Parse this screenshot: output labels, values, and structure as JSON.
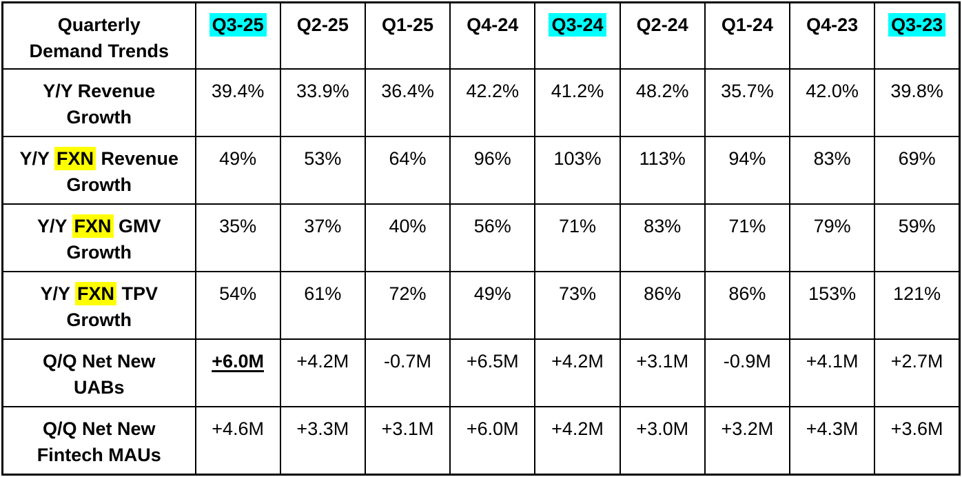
{
  "chart_data": {
    "type": "table",
    "title": "Quarterly Demand Trends",
    "categories": [
      "Q3-25",
      "Q2-25",
      "Q1-25",
      "Q4-24",
      "Q3-24",
      "Q2-24",
      "Q1-24",
      "Q4-23",
      "Q3-23"
    ],
    "series": [
      {
        "name": "Y/Y Revenue Growth",
        "values": [
          "39.4%",
          "33.9%",
          "36.4%",
          "42.2%",
          "41.2%",
          "48.2%",
          "35.7%",
          "42.0%",
          "39.8%"
        ]
      },
      {
        "name": "Y/Y FXN Revenue Growth",
        "values": [
          "49%",
          "53%",
          "64%",
          "96%",
          "103%",
          "113%",
          "94%",
          "83%",
          "69%"
        ]
      },
      {
        "name": "Y/Y FXN GMV Growth",
        "values": [
          "35%",
          "37%",
          "40%",
          "56%",
          "71%",
          "83%",
          "71%",
          "79%",
          "59%"
        ]
      },
      {
        "name": "Y/Y FXN TPV Growth",
        "values": [
          "54%",
          "61%",
          "72%",
          "49%",
          "73%",
          "86%",
          "86%",
          "153%",
          "121%"
        ]
      },
      {
        "name": "Q/Q Net New UABs",
        "values": [
          "+6.0M",
          "+4.2M",
          "-0.7M",
          "+6.5M",
          "+4.2M",
          "+3.1M",
          "-0.9M",
          "+4.1M",
          "+2.7M"
        ]
      },
      {
        "name": "Q/Q Net New Fintech MAUs",
        "values": [
          "+4.6M",
          "+3.3M",
          "+3.1M",
          "+6.0M",
          "+4.2M",
          "+3.0M",
          "+3.2M",
          "+4.3M",
          "+3.6M"
        ]
      }
    ],
    "highlighted_columns": [
      "Q3-25",
      "Q3-24",
      "Q3-23"
    ],
    "highlighted_term": "FXN",
    "emphasized_cell": {
      "row": "Q/Q Net New UABs",
      "column": "Q3-25",
      "value": "+6.0M"
    }
  },
  "table": {
    "title": "Quarterly\nDemand Trends",
    "columns": [
      {
        "text": "Q3-25",
        "highlight": true
      },
      {
        "text": "Q2-25"
      },
      {
        "text": "Q1-25"
      },
      {
        "text": "Q4-24"
      },
      {
        "text": "Q3-24",
        "highlight": true
      },
      {
        "text": "Q2-24"
      },
      {
        "text": "Q1-24"
      },
      {
        "text": "Q4-23"
      },
      {
        "text": "Q3-23",
        "highlight": true
      }
    ],
    "rows": [
      {
        "label": [
          {
            "text": "Y/Y Revenue\nGrowth"
          }
        ],
        "cells": [
          {
            "text": "39.4%"
          },
          {
            "text": "33.9%"
          },
          {
            "text": "36.4%"
          },
          {
            "text": "42.2%"
          },
          {
            "text": "41.2%"
          },
          {
            "text": "48.2%"
          },
          {
            "text": "35.7%"
          },
          {
            "text": "42.0%"
          },
          {
            "text": "39.8%"
          }
        ]
      },
      {
        "label": [
          {
            "text": "Y/Y "
          },
          {
            "text": "FXN",
            "highlight": true
          },
          {
            "text": " Revenue\nGrowth"
          }
        ],
        "cells": [
          {
            "text": "49%"
          },
          {
            "text": "53%"
          },
          {
            "text": "64%"
          },
          {
            "text": "96%"
          },
          {
            "text": "103%"
          },
          {
            "text": "113%"
          },
          {
            "text": "94%"
          },
          {
            "text": "83%"
          },
          {
            "text": "69%"
          }
        ]
      },
      {
        "label": [
          {
            "text": "Y/Y "
          },
          {
            "text": "FXN",
            "highlight": true
          },
          {
            "text": " GMV\nGrowth"
          }
        ],
        "cells": [
          {
            "text": "35%"
          },
          {
            "text": "37%"
          },
          {
            "text": "40%"
          },
          {
            "text": "56%"
          },
          {
            "text": "71%"
          },
          {
            "text": "83%"
          },
          {
            "text": "71%"
          },
          {
            "text": "79%"
          },
          {
            "text": "59%"
          }
        ]
      },
      {
        "label": [
          {
            "text": "Y/Y "
          },
          {
            "text": "FXN",
            "highlight": true
          },
          {
            "text": " TPV\nGrowth"
          }
        ],
        "cells": [
          {
            "text": "54%"
          },
          {
            "text": "61%"
          },
          {
            "text": "72%"
          },
          {
            "text": "49%"
          },
          {
            "text": "73%"
          },
          {
            "text": "86%"
          },
          {
            "text": "86%"
          },
          {
            "text": "153%"
          },
          {
            "text": "121%"
          }
        ]
      },
      {
        "label": [
          {
            "text": "Q/Q Net New\nUABs"
          }
        ],
        "cells": [
          {
            "text": "+6.0M",
            "emphasis": true
          },
          {
            "text": "+4.2M"
          },
          {
            "text": "-0.7M"
          },
          {
            "text": "+6.5M"
          },
          {
            "text": "+4.2M"
          },
          {
            "text": "+3.1M"
          },
          {
            "text": "-0.9M"
          },
          {
            "text": "+4.1M"
          },
          {
            "text": "+2.7M"
          }
        ]
      },
      {
        "label": [
          {
            "text": "Q/Q Net New\nFintech MAUs"
          }
        ],
        "cells": [
          {
            "text": "+4.6M"
          },
          {
            "text": "+3.3M"
          },
          {
            "text": "+3.1M"
          },
          {
            "text": "+6.0M"
          },
          {
            "text": "+4.2M"
          },
          {
            "text": "+3.0M"
          },
          {
            "text": "+3.2M"
          },
          {
            "text": "+4.3M"
          },
          {
            "text": "+3.6M"
          }
        ]
      }
    ]
  },
  "colors": {
    "cyan_highlight": "#00ffff",
    "yellow_highlight": "#ffff00",
    "border": "#000000",
    "text": "#000000",
    "background": "#ffffff"
  }
}
